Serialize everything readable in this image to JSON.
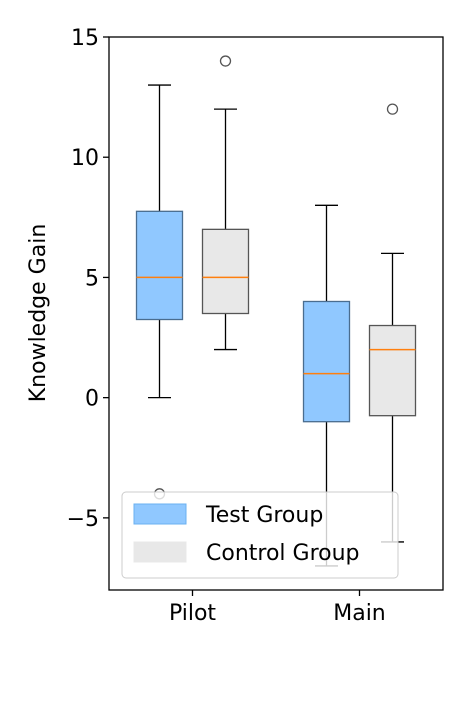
{
  "chart_data": {
    "type": "box",
    "categories": [
      "Pilot",
      "Main"
    ],
    "ylabel": "Knowledge Gain",
    "xlabel": "",
    "ylim": [
      -8,
      15
    ],
    "yticks": [
      -5,
      0,
      5,
      10,
      15
    ],
    "ytick_labels": [
      "−5",
      "0",
      "5",
      "10",
      "15"
    ],
    "grid": false,
    "legend_position": "lower-left",
    "series": [
      {
        "name": "Test Group",
        "color": "#90c8ff",
        "edge_color": "#4a6d8f",
        "boxes": [
          {
            "category": "Pilot",
            "whisker_low": 0,
            "q1": 3.25,
            "median": 5,
            "q3": 7.75,
            "whisker_high": 13,
            "outliers": [
              -4
            ]
          },
          {
            "category": "Main",
            "whisker_low": -7,
            "q1": -1,
            "median": 1,
            "q3": 4,
            "whisker_high": 8,
            "outliers": []
          }
        ]
      },
      {
        "name": "Control Group",
        "color": "#e8e8e8",
        "edge_color": "#555555",
        "boxes": [
          {
            "category": "Pilot",
            "whisker_low": 2,
            "q1": 3.5,
            "median": 5,
            "q3": 7,
            "whisker_high": 12,
            "outliers": [
              14
            ]
          },
          {
            "category": "Main",
            "whisker_low": -6,
            "q1": -0.75,
            "median": 2,
            "q3": 3,
            "whisker_high": 6,
            "outliers": [
              12
            ]
          }
        ]
      }
    ],
    "median_color": "#ff7f0e"
  }
}
